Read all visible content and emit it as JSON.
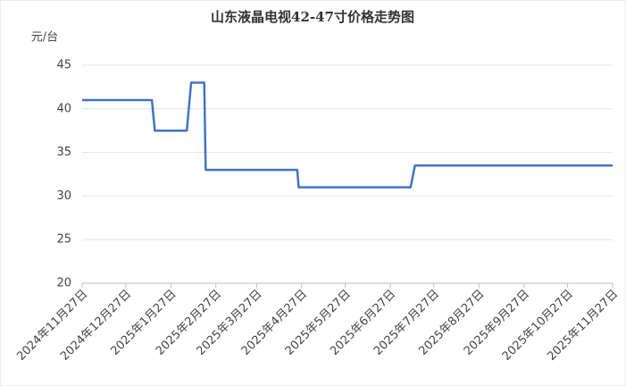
{
  "chart_data": {
    "type": "line",
    "title": "山东液晶电视42-47寸价格走势图",
    "y_label": "元/台",
    "x": [
      "2024-11-27",
      "2025-01-14",
      "2025-01-16",
      "2025-02-07",
      "2025-02-10",
      "2025-02-19",
      "2025-02-20",
      "2025-04-24",
      "2025-04-25",
      "2025-07-11",
      "2025-07-14",
      "2025-11-27"
    ],
    "series": [
      {
        "color": "#4472c4",
        "values": [
          41,
          41,
          37.5,
          37.5,
          43,
          43,
          33,
          33,
          31,
          31,
          33.5,
          33.5
        ]
      }
    ],
    "xlim": [
      "2024-11-27",
      "2025-11-27"
    ],
    "xticks": [
      {
        "value": "2024-11-27",
        "label": "2024年11月27日"
      },
      {
        "value": "2024-12-27",
        "label": "2024年12月27日"
      },
      {
        "value": "2025-01-27",
        "label": "2025年1月27日"
      },
      {
        "value": "2025-02-27",
        "label": "2025年2月27日"
      },
      {
        "value": "2025-03-27",
        "label": "2025年3月27日"
      },
      {
        "value": "2025-04-27",
        "label": "2025年4月27日"
      },
      {
        "value": "2025-05-27",
        "label": "2025年5月27日"
      },
      {
        "value": "2025-06-27",
        "label": "2025年6月27日"
      },
      {
        "value": "2025-07-27",
        "label": "2025年7月27日"
      },
      {
        "value": "2025-08-27",
        "label": "2025年8月27日"
      },
      {
        "value": "2025-09-27",
        "label": "2025年9月27日"
      },
      {
        "value": "2025-10-27",
        "label": "2025年10月27日"
      },
      {
        "value": "2025-11-27",
        "label": "2025年11月27日"
      }
    ],
    "ylim": [
      20,
      45
    ],
    "yticks": [
      20,
      25,
      30,
      35,
      40,
      45
    ],
    "grid": true
  }
}
